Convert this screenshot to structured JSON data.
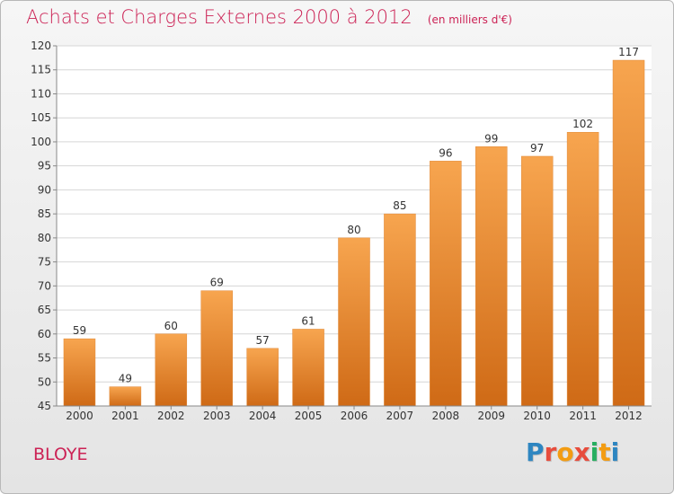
{
  "header": {
    "title": "Achats et Charges Externes 2000 à 2012",
    "unit": "(en milliers d'€)"
  },
  "footer": {
    "commune": "BLOYE",
    "logo_text": "Proxiti",
    "logo_colors": [
      "#2e86c1",
      "#e74c3c",
      "#f39c12",
      "#e74c3c",
      "#27ae60",
      "#f39c12",
      "#2e86c1"
    ]
  },
  "colors": {
    "accent": "#cc2255",
    "bar_top": "#f7a54f",
    "bar_bottom": "#cf6a16"
  },
  "chart_data": {
    "type": "bar",
    "title": "Achats et Charges Externes 2000 à 2012",
    "subtitle": "(en milliers d'€)",
    "categories": [
      "2000",
      "2001",
      "2002",
      "2003",
      "2004",
      "2005",
      "2006",
      "2007",
      "2008",
      "2009",
      "2010",
      "2011",
      "2012"
    ],
    "values": [
      59,
      49,
      60,
      69,
      57,
      61,
      80,
      85,
      96,
      99,
      97,
      102,
      117
    ],
    "ylim": [
      45,
      120
    ],
    "yticks": [
      45,
      50,
      55,
      60,
      65,
      70,
      75,
      80,
      85,
      90,
      95,
      100,
      105,
      110,
      115,
      120
    ],
    "xlabel": "",
    "ylabel": "",
    "grid": true,
    "data_labels": true
  }
}
